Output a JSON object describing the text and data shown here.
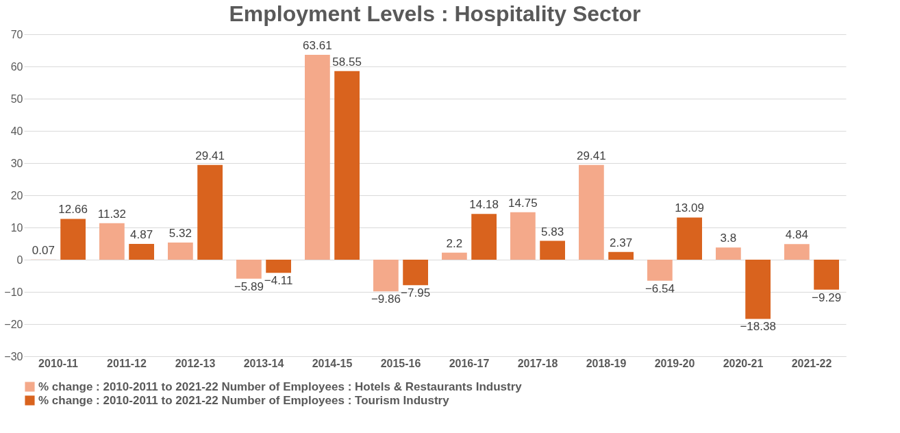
{
  "chart_data": {
    "type": "bar",
    "title": "Employment Levels : Hospitality Sector",
    "categories": [
      "2010-11",
      "2011-12",
      "2012-13",
      "2013-14",
      "2014-15",
      "2015-16",
      "2016-17",
      "2017-18",
      "2018-19",
      "2019-20",
      "2020-21",
      "2021-22"
    ],
    "series": [
      {
        "name": "% change : 2010-2011 to 2021-22 Number of Employees : Hotels & Restaurants Industry",
        "color": "#f4a98a",
        "values": [
          0.07,
          11.32,
          5.32,
          -5.89,
          63.61,
          -9.86,
          2.2,
          14.75,
          29.41,
          -6.54,
          3.8,
          4.84
        ]
      },
      {
        "name": "% change : 2010-2011 to 2021-22 Number of Employees : Tourism Industry",
        "color": "#d9631e",
        "values": [
          12.66,
          4.87,
          29.41,
          -4.11,
          58.55,
          -7.95,
          14.18,
          5.83,
          2.37,
          13.09,
          -18.38,
          -9.29
        ]
      }
    ],
    "ylim": [
      -30,
      70
    ],
    "yticks": [
      -30,
      -20,
      -10,
      0,
      10,
      20,
      30,
      40,
      50,
      60,
      70
    ],
    "grid": "y",
    "legend": "bottom",
    "data_labels": true
  }
}
